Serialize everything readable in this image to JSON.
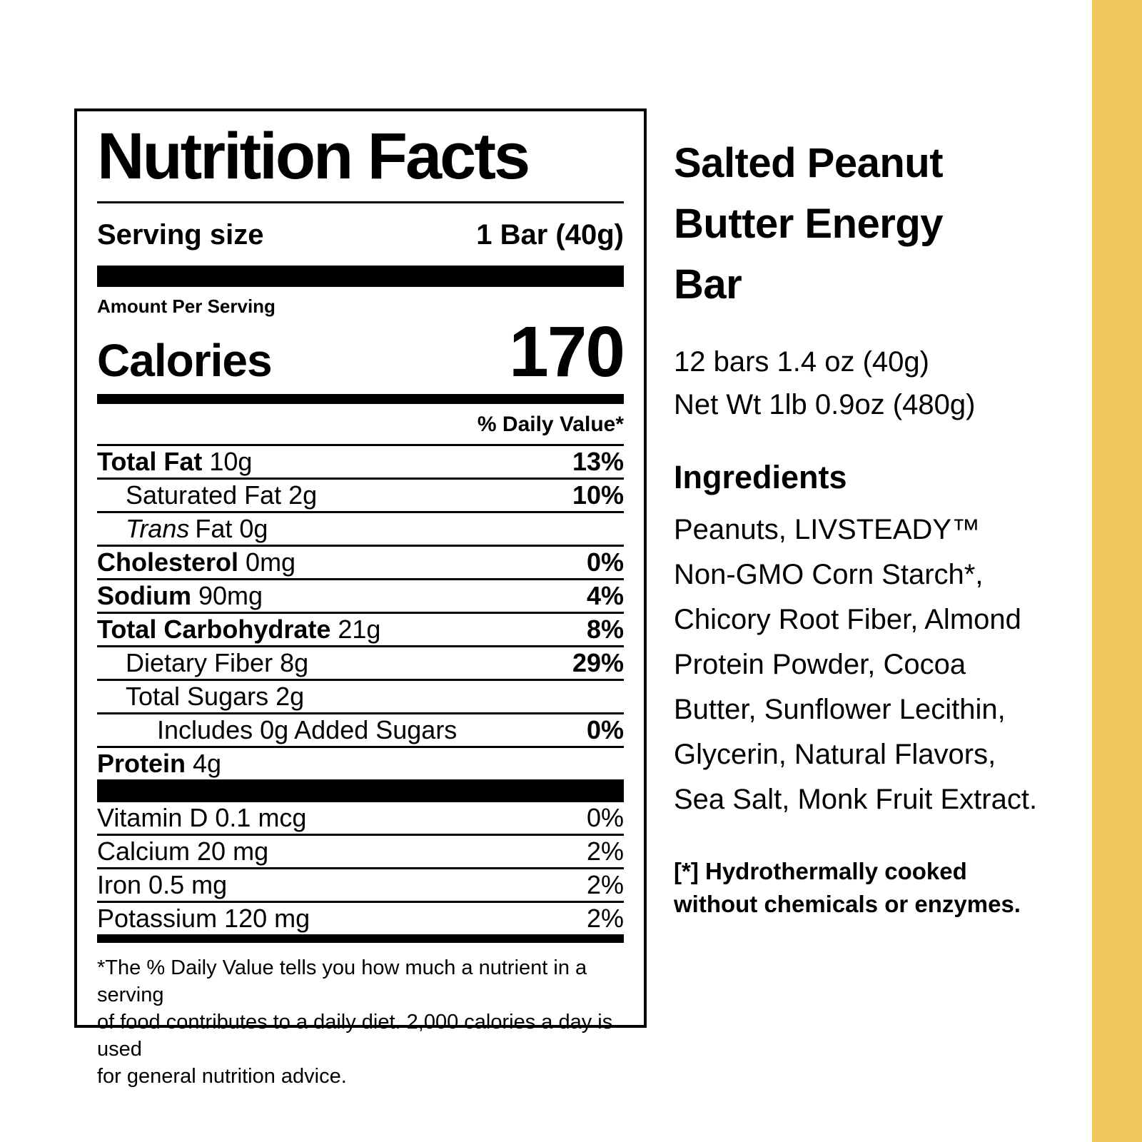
{
  "colors": {
    "accent_bar": "#F2C75C",
    "text": "#000000",
    "background": "#FFFFFF"
  },
  "nutrition_label": {
    "title": "Nutrition Facts",
    "serving_size": {
      "label": "Serving size",
      "value": "1 Bar (40g)"
    },
    "amount_per_serving_label": "Amount Per Serving",
    "calories": {
      "label": "Calories",
      "value": "170"
    },
    "daily_value_header": "% Daily Value*",
    "nutrients": [
      {
        "name": "Total Fat",
        "amount": "10g",
        "dv": "13%",
        "bold": true,
        "indent": 0
      },
      {
        "name": "Saturated Fat",
        "amount": "2g",
        "dv": "10%",
        "bold": false,
        "indent": 1
      },
      {
        "name_italic": "Trans",
        "name": "Fat",
        "amount": "0g",
        "dv": "",
        "bold": false,
        "indent": 1
      },
      {
        "name": "Cholesterol",
        "amount": "0mg",
        "dv": "0%",
        "bold": true,
        "indent": 0
      },
      {
        "name": "Sodium",
        "amount": "90mg",
        "dv": "4%",
        "bold": true,
        "indent": 0
      },
      {
        "name": "Total Carbohydrate",
        "amount": "21g",
        "dv": "8%",
        "bold": true,
        "indent": 0
      },
      {
        "name": "Dietary Fiber",
        "amount": "8g",
        "dv": "29%",
        "bold": false,
        "indent": 1
      },
      {
        "name": "Total Sugars",
        "amount": "2g",
        "dv": "",
        "bold": false,
        "indent": 1
      },
      {
        "name": "Includes 0g Added Sugars",
        "amount": "",
        "dv": "0%",
        "bold": false,
        "indent": 2
      },
      {
        "name": "Protein",
        "amount": "4g",
        "dv": "",
        "bold": true,
        "indent": 0
      }
    ],
    "micronutrients": [
      {
        "name": "Vitamin D",
        "amount": "0.1 mcg",
        "dv": "0%"
      },
      {
        "name": "Calcium",
        "amount": "20 mg",
        "dv": "2%"
      },
      {
        "name": "Iron",
        "amount": "0.5 mg",
        "dv": "2%"
      },
      {
        "name": "Potassium",
        "amount": "120 mg",
        "dv": "2%"
      }
    ],
    "footnote_lines": [
      "*The % Daily Value tells you how much a nutrient in a serving",
      "of food contributes to a daily diet. 2,000 calories a day is used",
      "for general nutrition advice."
    ]
  },
  "product": {
    "title_lines": [
      "Salted Peanut",
      "Butter Energy",
      "Bar"
    ],
    "pack_lines": [
      "12 bars 1.4 oz (40g)",
      "Net Wt 1lb 0.9oz (480g)"
    ],
    "ingredients_heading": "Ingredients",
    "ingredients_lines": [
      "Peanuts, LIVSTEADY™",
      "Non-GMO Corn Starch*,",
      "Chicory Root Fiber, Almond",
      "Protein Powder, Cocoa",
      "Butter, Sunflower Lecithin,",
      "Glycerin, Natural Flavors,",
      "Sea Salt, Monk Fruit Extract."
    ],
    "footnote_lines": [
      "[*] Hydrothermally cooked",
      "without chemicals or enzymes."
    ]
  }
}
